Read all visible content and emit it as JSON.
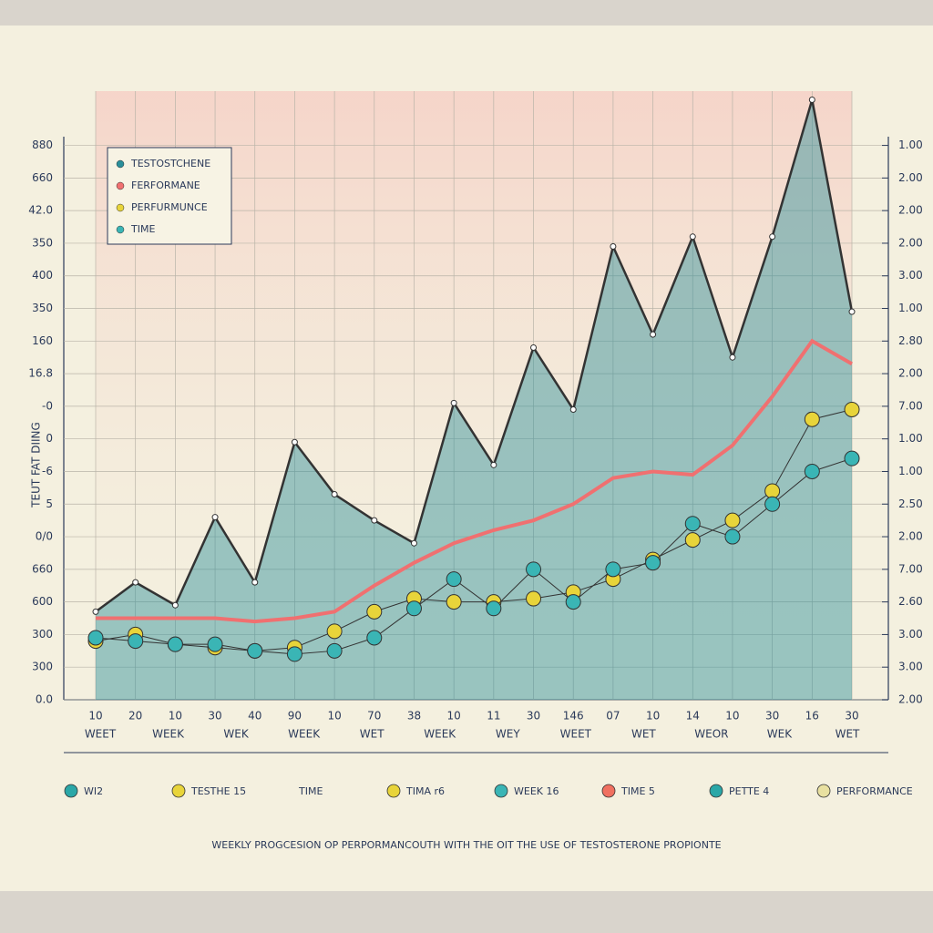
{
  "chart_data": {
    "type": "line",
    "title": "WEEKLY PROGCESION OP PERPORMANCOUTH WITH THE OIT THE USE OF TESTOSTERONE PROPIONTE",
    "y_label": "TEUT FAT DIING",
    "categories": [
      "10",
      "20",
      "10",
      "30",
      "40",
      "90",
      "10",
      "70",
      "38",
      "10",
      "11",
      "30",
      "146",
      "07",
      "10",
      "14",
      "10",
      "30",
      "16",
      "30"
    ],
    "week_labels": [
      "WEET",
      "WEEK",
      "WEK",
      "WEEK",
      "WET",
      "WEEK",
      "WEY",
      "WEET",
      "WET",
      "WEOR",
      "WEK",
      "WET"
    ],
    "ylim": [
      0,
      19
    ],
    "yticks": [
      {
        "value": 0,
        "label": "0.0"
      },
      {
        "value": 1,
        "label": "300"
      },
      {
        "value": 2,
        "label": "300"
      },
      {
        "value": 3,
        "label": "600"
      },
      {
        "value": 4,
        "label": "660"
      },
      {
        "value": 5,
        "label": "0/0"
      },
      {
        "value": 6,
        "label": "5"
      },
      {
        "value": 7,
        "label": "-6"
      },
      {
        "value": 8,
        "label": "0"
      },
      {
        "value": 9,
        "label": "-0"
      },
      {
        "value": 10,
        "label": "16.8"
      },
      {
        "value": 11,
        "label": "160"
      },
      {
        "value": 12,
        "label": "350"
      },
      {
        "value": 13,
        "label": "400"
      },
      {
        "value": 14,
        "label": "350"
      },
      {
        "value": 15,
        "label": "42.0"
      },
      {
        "value": 16,
        "label": "660"
      },
      {
        "value": 17,
        "label": "880"
      }
    ],
    "y2lim": [
      0,
      19
    ],
    "y2ticks": [
      {
        "value": 0,
        "label": "2.00"
      },
      {
        "value": 1,
        "label": "3.00"
      },
      {
        "value": 2,
        "label": "3.00"
      },
      {
        "value": 3,
        "label": "2.60"
      },
      {
        "value": 4,
        "label": "7.00"
      },
      {
        "value": 5,
        "label": "2.00"
      },
      {
        "value": 6,
        "label": "2.50"
      },
      {
        "value": 7,
        "label": "1.00"
      },
      {
        "value": 8,
        "label": "1.00"
      },
      {
        "value": 9,
        "label": "7.00"
      },
      {
        "value": 10,
        "label": "2.00"
      },
      {
        "value": 11,
        "label": "2.80"
      },
      {
        "value": 12,
        "label": "1.00"
      },
      {
        "value": 13,
        "label": "3.00"
      },
      {
        "value": 14,
        "label": "2.00"
      },
      {
        "value": 15,
        "label": "2.00"
      },
      {
        "value": 16,
        "label": "2.00"
      },
      {
        "value": 17,
        "label": "1.00"
      }
    ],
    "grid": true,
    "legend": "top-left",
    "series": [
      {
        "name": "TESTOSTCHENE",
        "color": "#2a8f9a",
        "style": "area",
        "values": [
          2.7,
          3.6,
          2.9,
          5.6,
          3.6,
          7.9,
          6.3,
          5.5,
          4.8,
          9.1,
          7.2,
          10.8,
          8.9,
          13.9,
          11.2,
          14.2,
          10.5,
          14.2,
          18.4,
          11.9
        ]
      },
      {
        "name": "FERFORMANE",
        "color": "#f07070",
        "style": "line",
        "values": [
          2.5,
          2.5,
          2.5,
          2.5,
          2.4,
          2.5,
          2.7,
          3.5,
          4.2,
          4.8,
          5.2,
          5.5,
          6.0,
          6.8,
          7.0,
          6.9,
          7.8,
          9.3,
          11.0,
          10.3
        ]
      },
      {
        "name": "PERFURMUNCE",
        "color": "#e8d43a",
        "style": "dots",
        "values": [
          1.8,
          2.0,
          1.7,
          1.6,
          1.5,
          1.6,
          2.1,
          2.7,
          3.1,
          3.0,
          3.0,
          3.1,
          3.3,
          3.7,
          4.3,
          4.9,
          5.5,
          6.4,
          8.6,
          8.9
        ]
      },
      {
        "name": "TIME",
        "color": "#3ab5b5",
        "style": "dots",
        "values": [
          1.9,
          1.8,
          1.7,
          1.7,
          1.5,
          1.4,
          1.5,
          1.9,
          2.8,
          3.7,
          2.8,
          4.0,
          3.0,
          4.0,
          4.2,
          5.4,
          5.0,
          6.0,
          7.0,
          7.4
        ]
      }
    ],
    "bottom_legend": [
      {
        "label": "WI2",
        "color": "#2aa7a7"
      },
      {
        "label": "TESTHE 15",
        "color": "#e8d43a"
      },
      {
        "label": "TIME",
        "color": null
      },
      {
        "label": "TIMA r6",
        "color": "#e8d43a"
      },
      {
        "label": "WEEK 16",
        "color": "#3ab5b5"
      },
      {
        "label": "TIME 5",
        "color": "#f07060"
      },
      {
        "label": "PETTE 4",
        "color": "#2aa7a7"
      },
      {
        "label": "PERFORMANCE",
        "color": "#e8e0a0"
      }
    ]
  }
}
